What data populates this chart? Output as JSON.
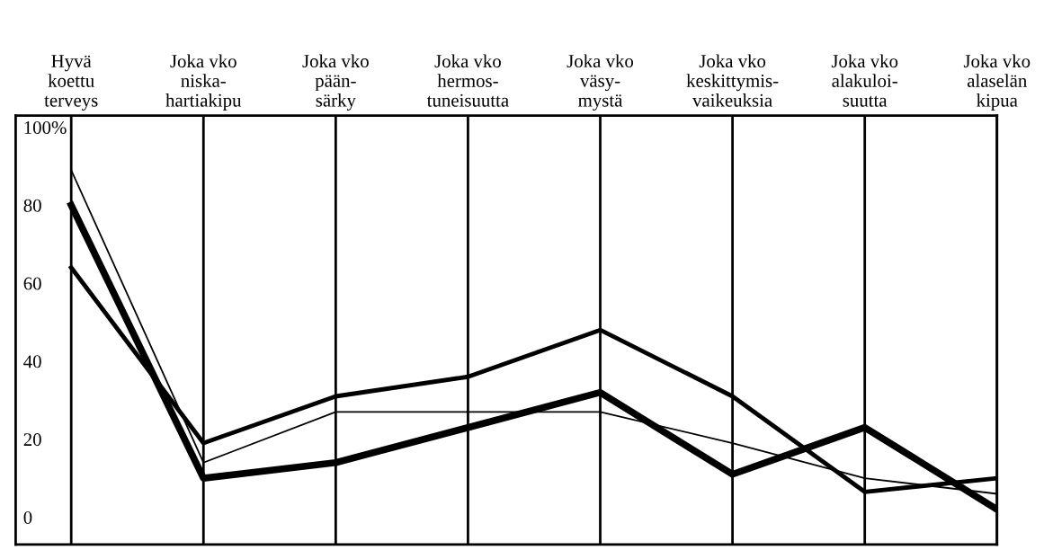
{
  "chart_data": {
    "type": "line",
    "categories": [
      "Hyvä\nkoettu\nterveys",
      "Joka vko\nniska-\nhartiakipu",
      "Joka vko\npään-\nsärky",
      "Joka vko\nhermos-\ntuneisuutta",
      "Joka vko\nväsy-\nmystä",
      "Joka vko\nkeskittymis-\nvaikeuksia",
      "Joka vko\nalakuloi-\nsuutta",
      "Joka vko\nalaselän\nkipua"
    ],
    "series": [
      {
        "color": "#000000",
        "values": [
          64,
          19,
          31,
          36,
          48,
          31,
          6.5,
          10
        ]
      },
      {
        "color": "#000000",
        "values": [
          80,
          10,
          14,
          23,
          32,
          11,
          23,
          2
        ]
      },
      {
        "color": "#000000",
        "values": [
          89,
          14,
          27,
          27,
          27,
          19,
          10,
          6
        ]
      }
    ],
    "ylim": [
      -7,
      103
    ],
    "yticks": [
      0,
      20,
      40,
      60,
      80,
      {
        "value": 100,
        "label": "100%"
      }
    ],
    "grid": "x",
    "legend": false,
    "marker": "none",
    "line_style": "solid"
  }
}
